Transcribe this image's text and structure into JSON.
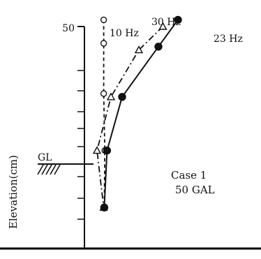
{
  "chart_data": {
    "type": "line",
    "ylabel": "Elevation(cm)",
    "y_top_label": "50",
    "ground_label": "GL",
    "annotation": [
      "Case 1",
      "50 GAL"
    ],
    "series": [
      {
        "name": "10 Hz",
        "marker": "open-circle",
        "line_style": "dashed",
        "points": [
          [
            0.2,
            52
          ],
          [
            0.2,
            45
          ],
          [
            0.2,
            30
          ],
          [
            0.4,
            13
          ],
          [
            0.3,
            -4
          ]
        ]
      },
      {
        "name": "30 Hz",
        "marker": "open-triangle",
        "line_style": "dash-dot",
        "points": [
          [
            10.8,
            50
          ],
          [
            6.5,
            43
          ],
          [
            1.5,
            29
          ],
          [
            -1.0,
            13
          ],
          [
            0.2,
            -4
          ]
        ]
      },
      {
        "name": "23 Hz",
        "marker": "filled-circle",
        "line_style": "solid",
        "points": [
          [
            13.5,
            52
          ],
          [
            10.0,
            44
          ],
          [
            3.5,
            29
          ],
          [
            0.8,
            13
          ],
          [
            0.3,
            -4
          ]
        ]
      }
    ],
    "colors": {
      "ink": "#111111"
    }
  }
}
